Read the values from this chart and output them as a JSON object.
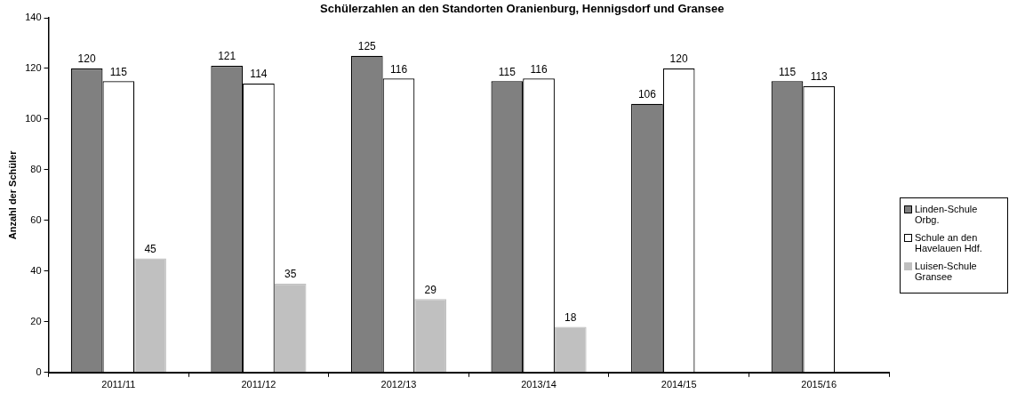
{
  "chart_data": {
    "type": "bar",
    "title": "Schülerzahlen an den Standorten Oranienburg, Hennigsdorf und Gransee",
    "ylabel": "Anzahl der Schüler",
    "categories": [
      "2011/11",
      "2011/12",
      "2012/13",
      "2013/14",
      "2014/15",
      "2015/16"
    ],
    "series": [
      {
        "name": "Linden-Schule Orbg.",
        "color": "#808080",
        "values": [
          120,
          121,
          125,
          115,
          106,
          115
        ]
      },
      {
        "name": "Schule an den Havelauen Hdf.",
        "color": "#ffffff",
        "values": [
          115,
          114,
          116,
          116,
          120,
          113
        ]
      },
      {
        "name": "Luisen-Schule Gransee",
        "color": "#c0c0c0",
        "values": [
          45,
          35,
          29,
          18,
          null,
          null
        ]
      }
    ],
    "ylim": [
      0,
      140
    ],
    "yticks": [
      0,
      20,
      40,
      60,
      80,
      100,
      120,
      140
    ],
    "grid": false,
    "legend": "right",
    "data_labels": true
  }
}
